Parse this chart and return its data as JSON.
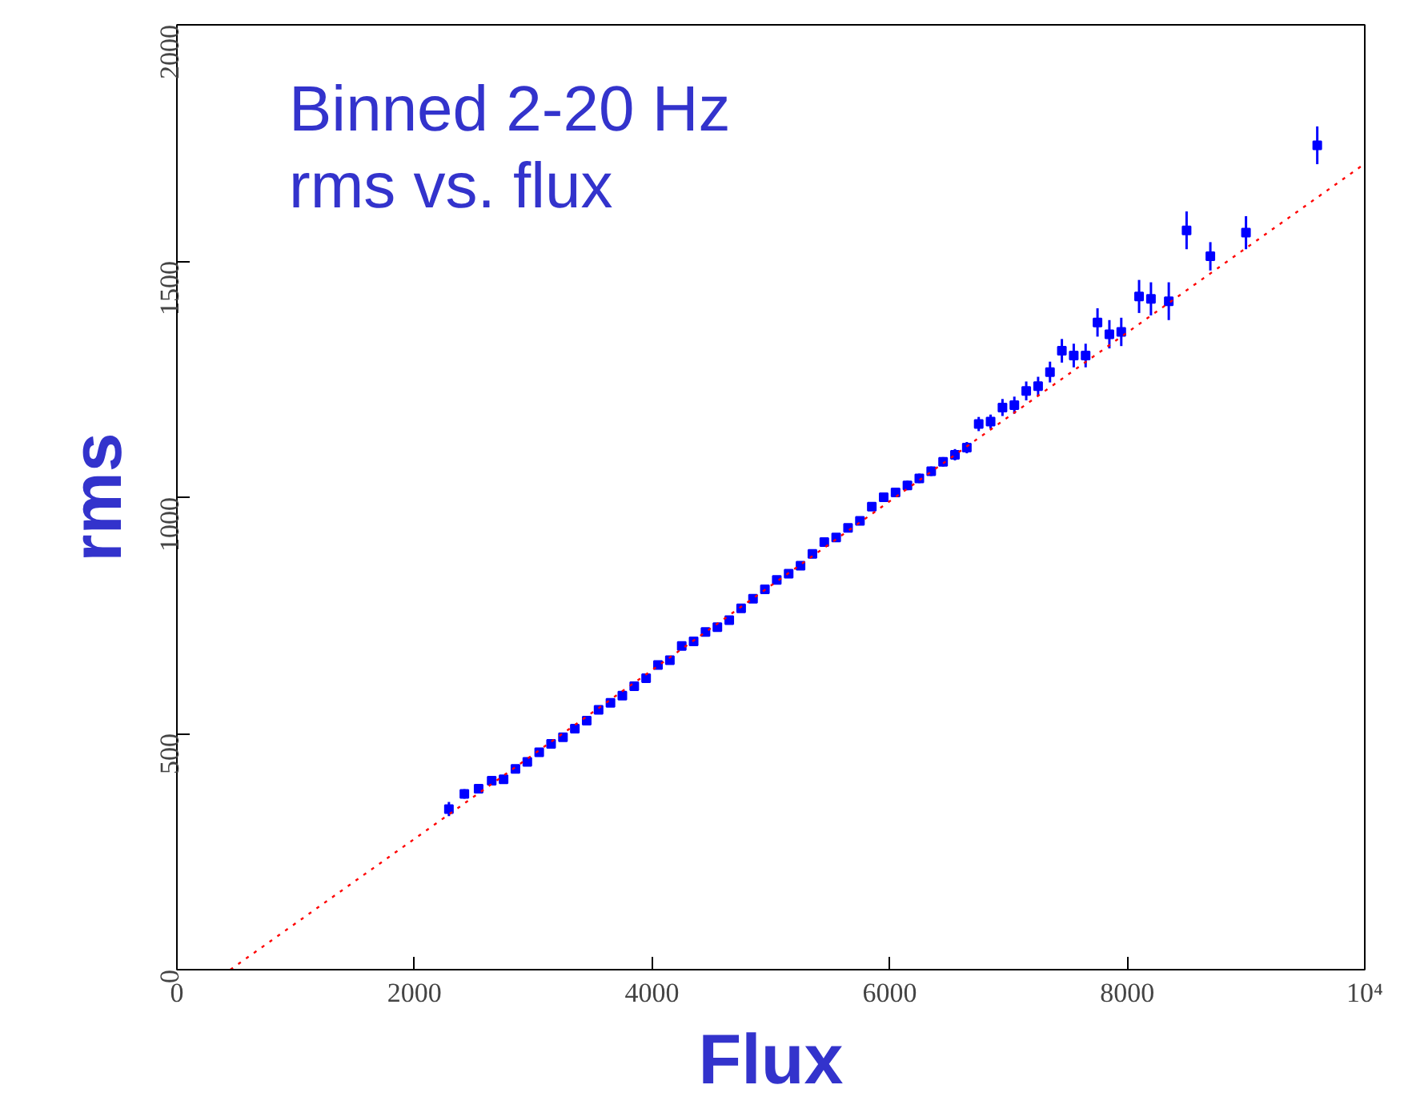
{
  "chart_data": {
    "type": "scatter",
    "xlabel": "Flux",
    "ylabel": "rms",
    "annotations": [
      "Binned 2-20 Hz",
      "rms vs. flux"
    ],
    "xlim": [
      0,
      10000
    ],
    "ylim": [
      0,
      2000
    ],
    "xticks": [
      0,
      2000,
      4000,
      6000,
      8000,
      {
        "value": 10000,
        "label": "10⁴"
      }
    ],
    "yticks": [
      0,
      500,
      1000,
      1500,
      2000
    ],
    "grid": false,
    "series": [
      {
        "color": "#0000ff",
        "marker": "square",
        "x": [
          2290,
          2420,
          2540,
          2650,
          2750,
          2850,
          2950,
          3050,
          3150,
          3250,
          3350,
          3450,
          3550,
          3650,
          3750,
          3850,
          3950,
          4050,
          4150,
          4250,
          4350,
          4450,
          4550,
          4650,
          4750,
          4850,
          4950,
          5050,
          5150,
          5250,
          5350,
          5450,
          5550,
          5650,
          5750,
          5850,
          5950,
          6050,
          6150,
          6250,
          6350,
          6450,
          6550,
          6650,
          6750,
          6850,
          6950,
          7050,
          7150,
          7250,
          7350,
          7450,
          7550,
          7650,
          7750,
          7850,
          7950,
          8100,
          8200,
          8350,
          8500,
          8700,
          9000,
          9600
        ],
        "values": [
          340,
          372,
          383,
          400,
          403,
          425,
          440,
          460,
          478,
          492,
          510,
          527,
          550,
          565,
          580,
          600,
          617,
          645,
          655,
          685,
          695,
          715,
          725,
          740,
          765,
          785,
          805,
          825,
          838,
          855,
          880,
          905,
          915,
          935,
          950,
          980,
          1000,
          1010,
          1025,
          1040,
          1055,
          1075,
          1090,
          1105,
          1155,
          1160,
          1190,
          1195,
          1225,
          1235,
          1265,
          1310,
          1300,
          1300,
          1370,
          1345,
          1350,
          1425,
          1420,
          1415,
          1565,
          1510,
          1560,
          1745
        ],
        "errors": [
          15,
          10,
          8,
          8,
          8,
          8,
          8,
          8,
          8,
          8,
          8,
          8,
          8,
          8,
          8,
          8,
          8,
          8,
          8,
          8,
          8,
          8,
          8,
          8,
          8,
          8,
          8,
          8,
          8,
          8,
          8,
          8,
          8,
          8,
          8,
          8,
          10,
          10,
          10,
          10,
          10,
          10,
          12,
          12,
          15,
          15,
          18,
          18,
          20,
          20,
          22,
          25,
          25,
          25,
          30,
          30,
          30,
          35,
          35,
          40,
          40,
          30,
          35,
          40
        ]
      },
      {
        "type": "line",
        "color": "#ff0000",
        "line_style": "dotted",
        "marker": "none",
        "x": [
          450,
          10000
        ],
        "values": [
          0,
          1706
        ]
      }
    ]
  }
}
